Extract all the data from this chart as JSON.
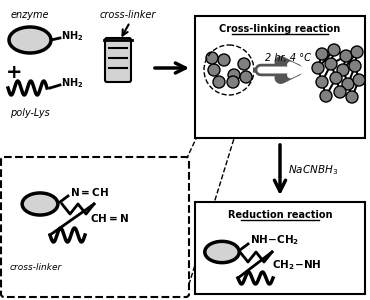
{
  "bg_color": "#ffffff",
  "text_color": "#000000",
  "fig_width": 3.7,
  "fig_height": 3.0,
  "dpi": 100,
  "lw_thick": 2.5,
  "lw_med": 2.0,
  "lw_thin": 1.5,
  "enzyme_label": "enzyme",
  "crosslinker_label": "cross-linker",
  "polylys_label": "poly-Lys",
  "cross_reaction_title": "Cross-linking reaction",
  "reduction_title": "Reduction reaction",
  "nacnbh3": "NaCNBH₃",
  "condition": "2 hr, 4 °C",
  "schiff_n_ch": "N=CH",
  "schiff_ch_n": "CH=N",
  "nh_ch2": "NH-CH₂",
  "ch2_nh": "CH₂-NH",
  "nh2": "NH₂",
  "crosslinker_italic": "cross-linker"
}
